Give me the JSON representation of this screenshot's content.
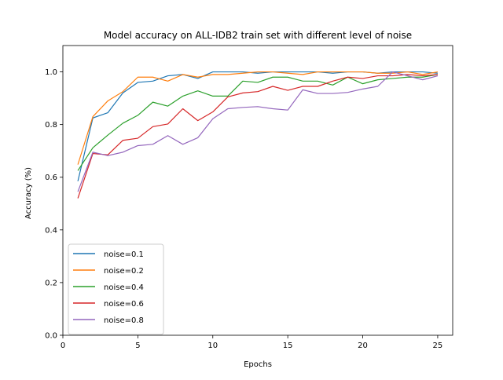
{
  "chart_data": {
    "type": "line",
    "title": "Model accuracy on ALL-IDB2 train set with different level of noise",
    "xlabel": "Epochs",
    "ylabel": "Accuracy (%)",
    "xlim": [
      0,
      26
    ],
    "ylim": [
      0,
      1.1
    ],
    "xticks": [
      0,
      5,
      10,
      15,
      20,
      25
    ],
    "yticks": [
      0.0,
      0.2,
      0.4,
      0.6,
      0.8,
      1.0
    ],
    "grid": false,
    "legend_position": "lower-left",
    "x": [
      1,
      2,
      3,
      4,
      5,
      6,
      7,
      8,
      9,
      10,
      11,
      12,
      13,
      14,
      15,
      16,
      17,
      18,
      19,
      20,
      21,
      22,
      23,
      24,
      25
    ],
    "series": [
      {
        "name": "noise=0.1",
        "color": "#1f77b4",
        "values": [
          0.585,
          0.825,
          0.845,
          0.92,
          0.96,
          0.965,
          0.985,
          0.99,
          0.975,
          1.0,
          1.0,
          1.0,
          0.995,
          1.0,
          1.0,
          1.0,
          1.0,
          0.995,
          1.0,
          1.0,
          0.995,
          1.0,
          1.0,
          1.0,
          0.995
        ]
      },
      {
        "name": "noise=0.2",
        "color": "#ff7f0e",
        "values": [
          0.648,
          0.83,
          0.89,
          0.925,
          0.98,
          0.98,
          0.965,
          0.99,
          0.98,
          0.99,
          0.99,
          0.995,
          1.0,
          1.0,
          0.995,
          0.99,
          1.0,
          1.0,
          1.0,
          1.0,
          0.995,
          0.995,
          1.0,
          0.99,
          1.0
        ]
      },
      {
        "name": "noise=0.4",
        "color": "#2ca02c",
        "values": [
          0.625,
          0.712,
          0.76,
          0.805,
          0.835,
          0.885,
          0.87,
          0.908,
          0.928,
          0.908,
          0.908,
          0.965,
          0.96,
          0.98,
          0.98,
          0.965,
          0.965,
          0.95,
          0.98,
          0.955,
          0.97,
          0.975,
          0.98,
          0.98,
          0.99
        ]
      },
      {
        "name": "noise=0.6",
        "color": "#d62728",
        "values": [
          0.52,
          0.69,
          0.685,
          0.74,
          0.748,
          0.792,
          0.802,
          0.86,
          0.815,
          0.848,
          0.905,
          0.92,
          0.925,
          0.945,
          0.93,
          0.945,
          0.945,
          0.965,
          0.98,
          0.975,
          0.985,
          0.985,
          0.99,
          0.985,
          0.99
        ]
      },
      {
        "name": "noise=0.8",
        "color": "#9467bd",
        "values": [
          0.545,
          0.695,
          0.682,
          0.695,
          0.72,
          0.725,
          0.758,
          0.725,
          0.75,
          0.822,
          0.86,
          0.865,
          0.868,
          0.86,
          0.855,
          0.932,
          0.918,
          0.918,
          0.922,
          0.935,
          0.945,
          1.0,
          0.985,
          0.97,
          0.985
        ]
      }
    ]
  }
}
